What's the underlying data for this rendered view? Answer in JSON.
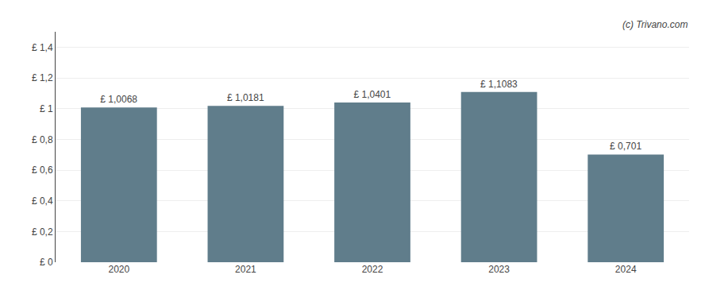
{
  "chart_data": {
    "type": "bar",
    "categories": [
      "2020",
      "2021",
      "2022",
      "2023",
      "2024"
    ],
    "values": [
      1.0068,
      1.0181,
      1.0401,
      1.1083,
      0.701
    ],
    "value_labels": [
      "£ 1,0068",
      "£ 1,0181",
      "£ 1,0401",
      "£ 1,1083",
      "£ 0,701"
    ],
    "data_labels": true,
    "color": "#607d8b",
    "ylim": [
      0,
      1.5
    ],
    "yticks": [
      {
        "value": 0,
        "label": "£ 0"
      },
      {
        "value": 0.2,
        "label": "£ 0,2"
      },
      {
        "value": 0.4,
        "label": "£ 0,4"
      },
      {
        "value": 0.6,
        "label": "£ 0,6"
      },
      {
        "value": 0.8,
        "label": "£ 0,8"
      },
      {
        "value": 1.0,
        "label": "£ 1"
      },
      {
        "value": 1.2,
        "label": "£ 1,2"
      },
      {
        "value": 1.4,
        "label": "£ 1,4"
      }
    ],
    "grid": true,
    "annotations": [
      "(c) Trivano.com"
    ]
  }
}
